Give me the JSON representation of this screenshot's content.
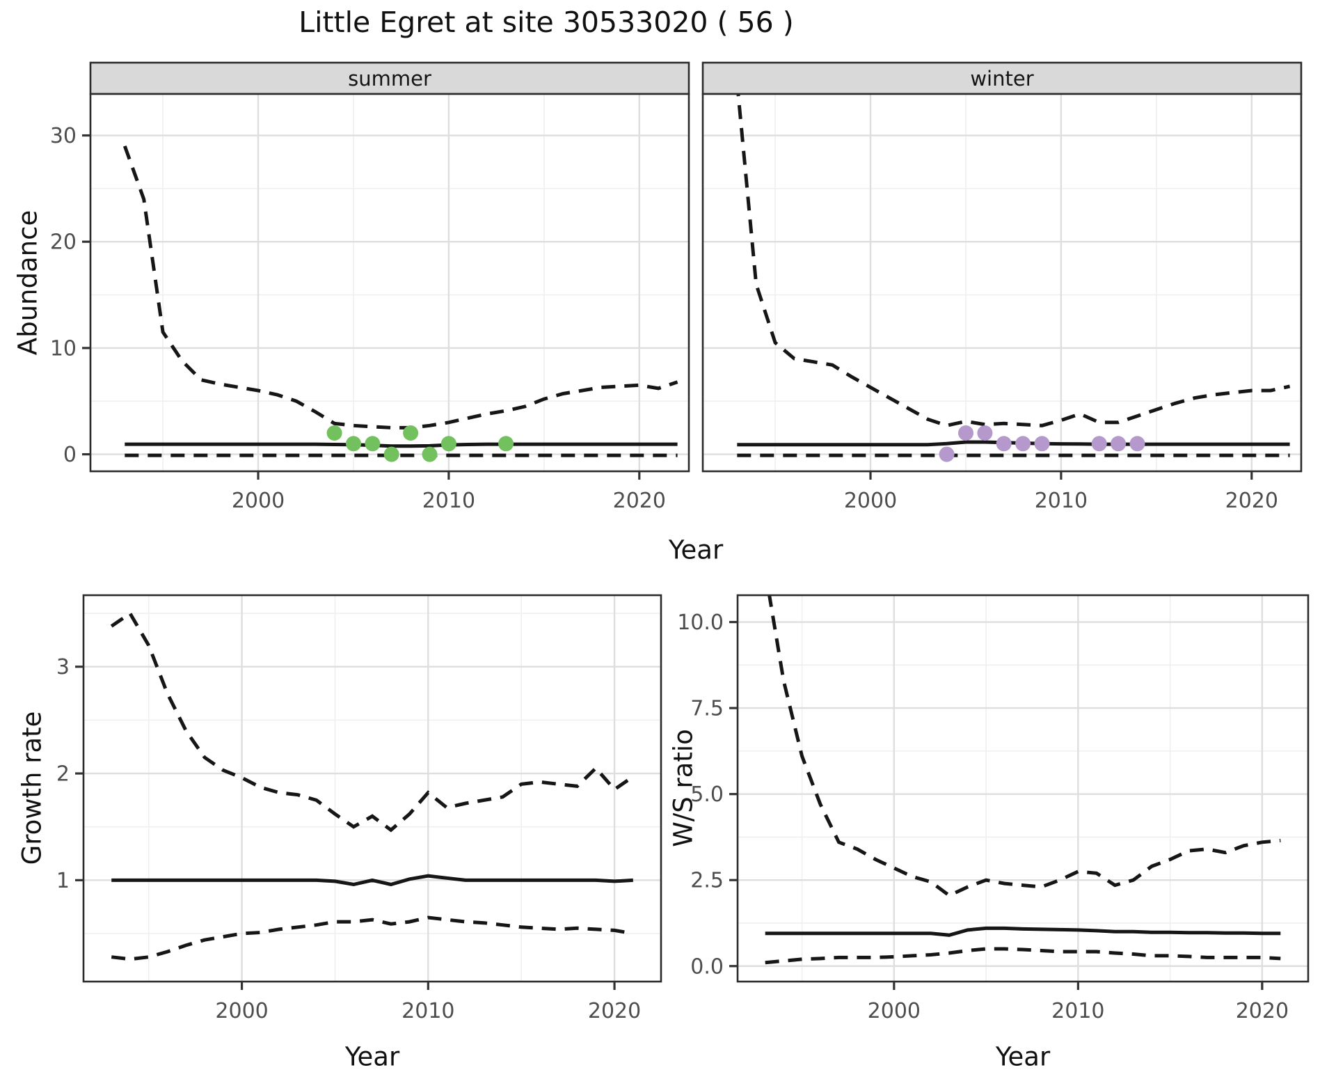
{
  "figure_title": "Little Egret at site 30533020 ( 56 )",
  "colors": {
    "summer_points": "#73c05f",
    "winter_points": "#b598cc",
    "line": "#161616",
    "strip_bg": "#d9d9d9",
    "panel_bg": "#ffffff",
    "grid_major": "#dedede",
    "grid_minor": "#efefef",
    "panel_border": "#2b2b2b",
    "axis_text": "#4d4d4d",
    "tick_mark": "#333333"
  },
  "chart_data": [
    {
      "id": "abundance",
      "type": "line",
      "title": "",
      "xlabel": "Year",
      "ylabel": "Abundance",
      "legend_position": "none",
      "grid": true,
      "xlim": [
        1991.2,
        2022.6
      ],
      "ylim": [
        -1.6,
        33.9
      ],
      "xticks": [
        2000,
        2010,
        2020
      ],
      "xtick_labels": [
        "2000",
        "2010",
        "2020"
      ],
      "xminor": [
        1995,
        2005,
        2015
      ],
      "yticks": [
        0,
        10,
        20,
        30
      ],
      "ytick_labels": [
        "0",
        "10",
        "20",
        "30"
      ],
      "yminor": [
        5,
        15,
        25
      ],
      "years": [
        1993,
        1994,
        1995,
        1996,
        1997,
        1998,
        1999,
        2000,
        2001,
        2002,
        2003,
        2004,
        2005,
        2006,
        2007,
        2008,
        2009,
        2010,
        2011,
        2012,
        2013,
        2014,
        2015,
        2016,
        2017,
        2018,
        2019,
        2020,
        2021,
        2022
      ],
      "facets": [
        {
          "label": "summer",
          "point_color_key": "summer_points",
          "observations": {
            "x": [
              2004,
              2005,
              2006,
              2007,
              2008,
              2009,
              2010,
              2013
            ],
            "y": [
              2,
              1,
              1,
              0,
              2,
              0,
              1,
              1
            ]
          },
          "mean": [
            0.95,
            0.95,
            0.95,
            0.95,
            0.95,
            0.95,
            0.95,
            0.95,
            0.95,
            0.95,
            0.95,
            0.92,
            0.9,
            0.85,
            0.78,
            0.78,
            0.8,
            0.88,
            0.92,
            0.95,
            0.95,
            0.95,
            0.95,
            0.95,
            0.95,
            0.95,
            0.95,
            0.95,
            0.95,
            0.95
          ],
          "upper_ci": [
            29,
            24,
            11.5,
            8.8,
            7.0,
            6.6,
            6.3,
            6.0,
            5.6,
            5.0,
            4.0,
            2.9,
            2.7,
            2.6,
            2.5,
            2.5,
            2.7,
            3.0,
            3.4,
            3.8,
            4.1,
            4.5,
            5.2,
            5.7,
            6.0,
            6.3,
            6.4,
            6.5,
            6.2,
            6.8
          ],
          "lower_ci": [
            -0.1,
            -0.1,
            -0.1,
            -0.1,
            -0.1,
            -0.1,
            -0.1,
            -0.1,
            -0.1,
            -0.1,
            -0.1,
            -0.1,
            -0.1,
            -0.1,
            -0.1,
            -0.1,
            -0.1,
            -0.1,
            -0.1,
            -0.1,
            -0.1,
            -0.1,
            -0.1,
            -0.1,
            -0.1,
            -0.1,
            -0.1,
            -0.1,
            -0.1,
            -0.1
          ]
        },
        {
          "label": "winter",
          "point_color_key": "winter_points",
          "observations": {
            "x": [
              2004,
              2005,
              2006,
              2007,
              2008,
              2009,
              2012,
              2013,
              2014
            ],
            "y": [
              0,
              2,
              2,
              1,
              1,
              1,
              1,
              1,
              1
            ]
          },
          "mean": [
            0.9,
            0.9,
            0.9,
            0.9,
            0.9,
            0.9,
            0.9,
            0.9,
            0.9,
            0.9,
            0.9,
            1.0,
            1.15,
            1.15,
            1.1,
            1.05,
            1.0,
            0.98,
            0.97,
            0.95,
            0.95,
            0.95,
            0.95,
            0.95,
            0.95,
            0.95,
            0.95,
            0.95,
            0.95,
            0.95
          ],
          "upper_ci": [
            35,
            16,
            10.5,
            9.0,
            8.7,
            8.4,
            7.3,
            6.3,
            5.3,
            4.3,
            3.3,
            2.7,
            3.1,
            2.8,
            2.9,
            2.8,
            2.7,
            3.2,
            3.8,
            3.0,
            3.0,
            3.6,
            4.2,
            4.8,
            5.3,
            5.6,
            5.8,
            6.0,
            6.0,
            6.4
          ],
          "lower_ci": [
            -0.1,
            -0.1,
            -0.1,
            -0.1,
            -0.1,
            -0.1,
            -0.1,
            -0.1,
            -0.1,
            -0.1,
            -0.1,
            -0.1,
            -0.1,
            -0.1,
            -0.1,
            -0.1,
            -0.1,
            -0.1,
            -0.1,
            -0.1,
            -0.1,
            -0.1,
            -0.1,
            -0.1,
            -0.1,
            -0.1,
            -0.1,
            -0.1,
            -0.1,
            -0.1
          ]
        }
      ]
    },
    {
      "id": "growth_rate",
      "type": "line",
      "xlabel": "Year",
      "ylabel": "Growth rate",
      "grid": true,
      "xlim": [
        1991.5,
        2022.5
      ],
      "ylim": [
        0.05,
        3.67
      ],
      "xticks": [
        2000,
        2010,
        2020
      ],
      "xtick_labels": [
        "2000",
        "2010",
        "2020"
      ],
      "xminor": [
        1995,
        2005,
        2015
      ],
      "yticks": [
        1,
        2,
        3
      ],
      "ytick_labels": [
        "1",
        "2",
        "3"
      ],
      "yminor": [
        0.5,
        1.5,
        2.5,
        3.5
      ],
      "years": [
        1993,
        1994,
        1995,
        1996,
        1997,
        1998,
        1999,
        2000,
        2001,
        2002,
        2003,
        2004,
        2005,
        2006,
        2007,
        2008,
        2009,
        2010,
        2011,
        2012,
        2013,
        2014,
        2015,
        2016,
        2017,
        2018,
        2019,
        2020,
        2021
      ],
      "mean": [
        1,
        1,
        1,
        1,
        1,
        1,
        1,
        1,
        1,
        1,
        1,
        1,
        0.99,
        0.96,
        1.0,
        0.96,
        1.01,
        1.04,
        1.02,
        1.0,
        1.0,
        1.0,
        1.0,
        1.0,
        1.0,
        1.0,
        1.0,
        0.99,
        1.0
      ],
      "upper_ci": [
        3.38,
        3.5,
        3.2,
        2.75,
        2.4,
        2.15,
        2.03,
        1.96,
        1.87,
        1.82,
        1.8,
        1.75,
        1.62,
        1.5,
        1.6,
        1.47,
        1.62,
        1.82,
        1.68,
        1.72,
        1.75,
        1.78,
        1.9,
        1.92,
        1.9,
        1.88,
        2.05,
        1.85,
        1.97
      ],
      "lower_ci": [
        0.28,
        0.26,
        0.28,
        0.33,
        0.39,
        0.44,
        0.47,
        0.5,
        0.51,
        0.54,
        0.56,
        0.58,
        0.61,
        0.61,
        0.63,
        0.59,
        0.61,
        0.65,
        0.63,
        0.61,
        0.6,
        0.58,
        0.56,
        0.55,
        0.54,
        0.55,
        0.54,
        0.53,
        0.5
      ]
    },
    {
      "id": "ws_ratio",
      "type": "line",
      "xlabel": "Year",
      "ylabel": "W/S ratio",
      "grid": true,
      "xlim": [
        1991.5,
        2022.5
      ],
      "ylim": [
        -0.45,
        10.78
      ],
      "xticks": [
        2000,
        2010,
        2020
      ],
      "xtick_labels": [
        "2000",
        "2010",
        "2020"
      ],
      "xminor": [
        1995,
        2005,
        2015
      ],
      "yticks": [
        0,
        2.5,
        5,
        7.5,
        10
      ],
      "ytick_labels": [
        "0.0",
        "2.5",
        "5.0",
        "7.5",
        "10.0"
      ],
      "yminor": [
        1.25,
        3.75,
        6.25,
        8.75
      ],
      "years": [
        1993,
        1994,
        1995,
        1996,
        1997,
        1998,
        1999,
        2000,
        2001,
        2002,
        2003,
        2004,
        2005,
        2006,
        2007,
        2008,
        2009,
        2010,
        2011,
        2012,
        2013,
        2014,
        2015,
        2016,
        2017,
        2018,
        2019,
        2020,
        2021
      ],
      "mean": [
        0.95,
        0.95,
        0.95,
        0.95,
        0.95,
        0.95,
        0.95,
        0.95,
        0.95,
        0.95,
        0.9,
        1.05,
        1.1,
        1.1,
        1.08,
        1.07,
        1.06,
        1.05,
        1.03,
        1.0,
        1.0,
        0.98,
        0.98,
        0.97,
        0.97,
        0.96,
        0.96,
        0.95,
        0.95
      ],
      "upper_ci": [
        11.5,
        8.3,
        6.1,
        4.7,
        3.6,
        3.4,
        3.1,
        2.85,
        2.6,
        2.45,
        2.05,
        2.3,
        2.5,
        2.4,
        2.35,
        2.3,
        2.5,
        2.75,
        2.7,
        2.35,
        2.5,
        2.9,
        3.1,
        3.35,
        3.4,
        3.3,
        3.5,
        3.6,
        3.65
      ],
      "lower_ci": [
        0.1,
        0.15,
        0.2,
        0.22,
        0.25,
        0.25,
        0.25,
        0.27,
        0.3,
        0.33,
        0.38,
        0.45,
        0.5,
        0.5,
        0.48,
        0.45,
        0.42,
        0.42,
        0.42,
        0.38,
        0.35,
        0.3,
        0.3,
        0.28,
        0.25,
        0.25,
        0.25,
        0.25,
        0.22
      ]
    }
  ]
}
